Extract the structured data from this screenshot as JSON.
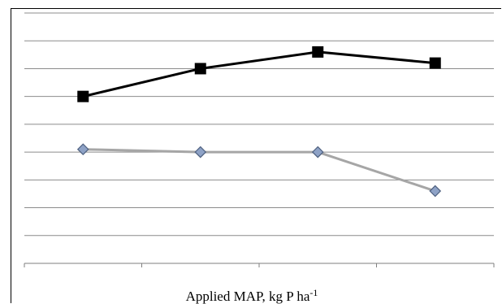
{
  "chart_data": {
    "type": "line",
    "title": "",
    "xlabel": "Applied MAP, kg P ha",
    "xlabel_superscript": "-1",
    "ylabel": "",
    "categories": [
      "",
      "",
      "",
      ""
    ],
    "ylim": [
      0,
      9
    ],
    "grid": true,
    "legend": "none",
    "series": [
      {
        "color": "#000000",
        "marker": "square",
        "values": [
          6.0,
          7.0,
          7.6,
          7.2
        ]
      },
      {
        "color": "#a6a6a6",
        "marker_fill": "#8ea2c6",
        "marker_stroke": "#4f6180",
        "marker": "diamond",
        "values": [
          4.1,
          4.0,
          4.0,
          2.6
        ]
      }
    ]
  }
}
